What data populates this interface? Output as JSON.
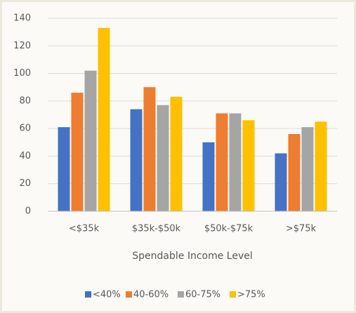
{
  "chart_data": {
    "type": "bar",
    "x_label": "Spendable Income Level",
    "categories": [
      "<$35k",
      "$35k-$50k",
      "$50k-$75k",
      ">$75k"
    ],
    "series": [
      {
        "name": "<40%",
        "color": "#4472c4",
        "values": [
          61,
          74,
          50,
          42
        ]
      },
      {
        "name": "40-60%",
        "color": "#ed7d31",
        "values": [
          86,
          90,
          71,
          56
        ]
      },
      {
        "name": "60-75%",
        "color": "#a5a5a5",
        "values": [
          102,
          77,
          71,
          61
        ]
      },
      {
        "name": ">75%",
        "color": "#ffc000",
        "values": [
          133,
          83,
          66,
          65
        ]
      }
    ],
    "ylim": [
      0,
      140
    ],
    "yticks": [
      0,
      20,
      40,
      60,
      80,
      100,
      120,
      140
    ],
    "grid": true,
    "legend": "bottom"
  }
}
